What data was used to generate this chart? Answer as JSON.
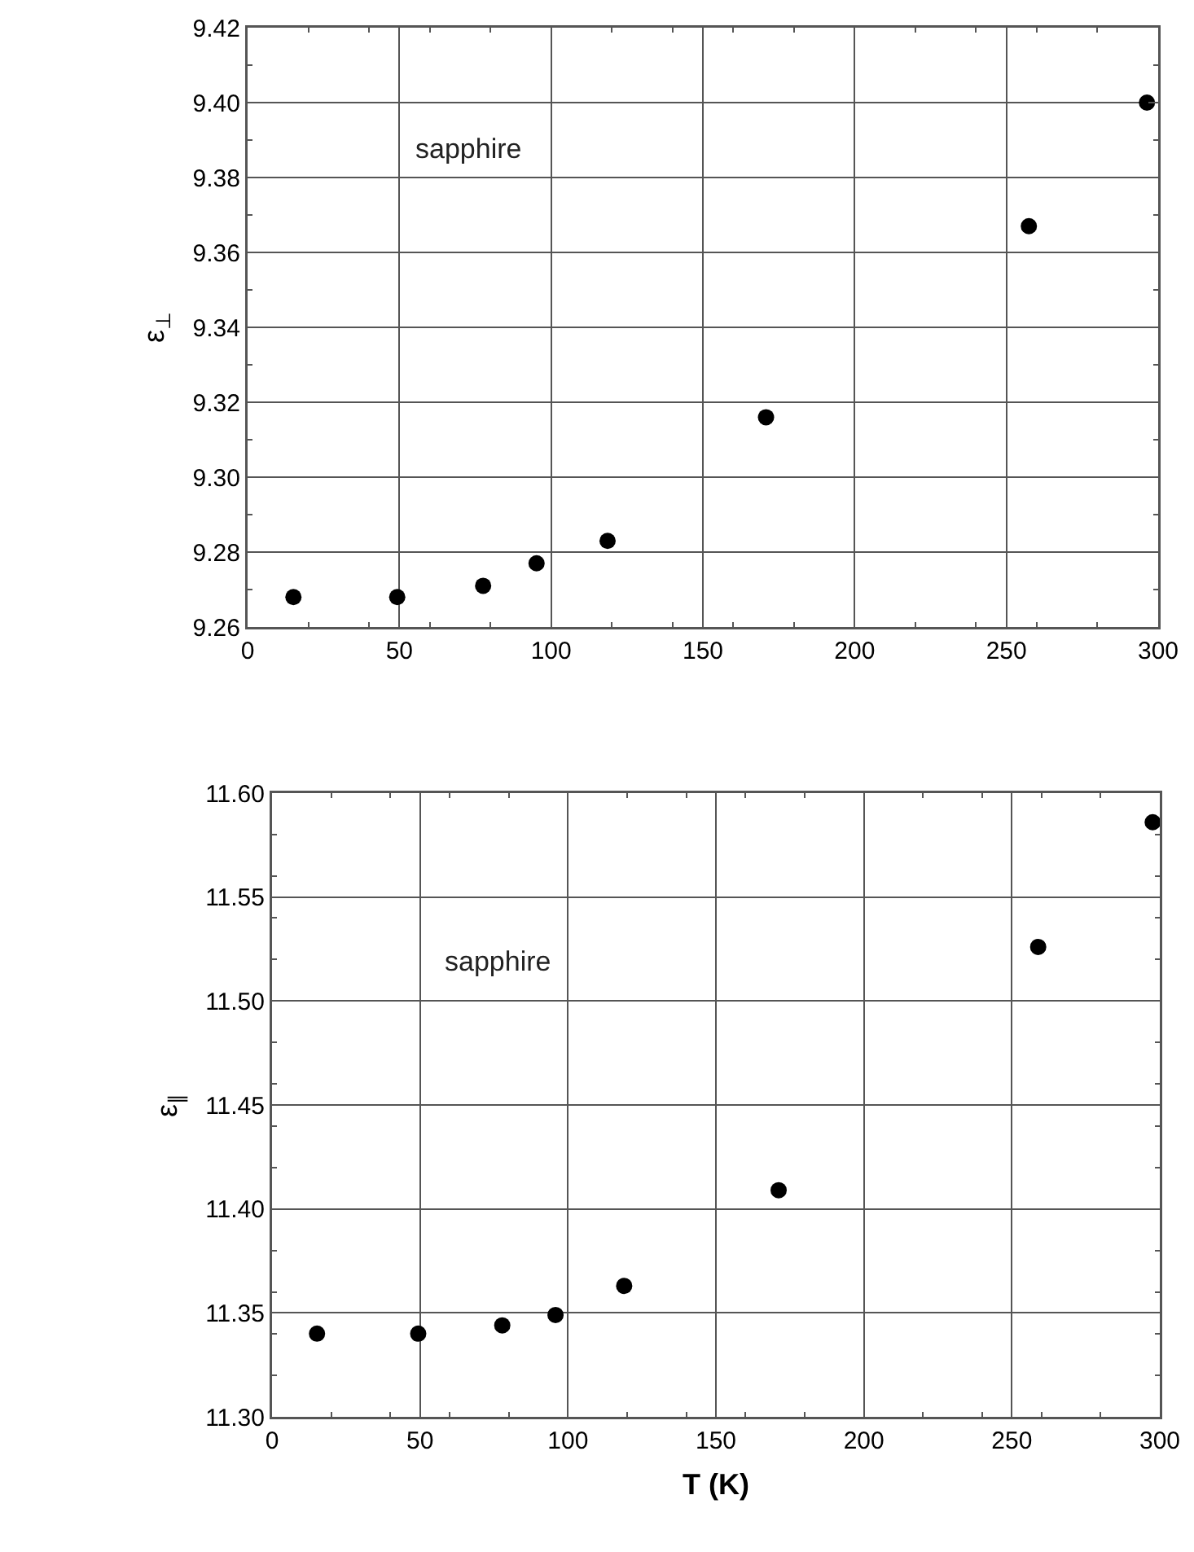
{
  "chart_data": [
    {
      "type": "scatter",
      "ylabel": "ε$_{⊥}$",
      "annotations": [
        "sapphire"
      ],
      "x": [
        15.1,
        49.3,
        77.6,
        95.2,
        118.6,
        170.8,
        257.4,
        296.3
      ],
      "values": [
        9.268,
        9.268,
        9.271,
        9.277,
        9.283,
        9.316,
        9.367,
        9.4
      ],
      "color": "#000000",
      "marker": "circle",
      "grid": true,
      "xlim": [
        0,
        300
      ],
      "xticks": [
        0,
        50,
        100,
        150,
        200,
        250,
        300
      ],
      "ylim": [
        9.26,
        9.42
      ],
      "yticks": [
        {
          "value": 9.26,
          "label": "9.26"
        },
        {
          "value": 9.28,
          "label": "9.28"
        },
        {
          "value": 9.3,
          "label": "9.30"
        },
        {
          "value": 9.32,
          "label": "9.32"
        },
        {
          "value": 9.34,
          "label": "9.34"
        },
        {
          "value": 9.36,
          "label": "9.36"
        },
        {
          "value": 9.38,
          "label": "9.38"
        },
        {
          "value": 9.4,
          "label": "9.40"
        },
        {
          "value": 9.42,
          "label": "9.42"
        }
      ]
    },
    {
      "type": "scatter",
      "ylabel": "ε$_{∥}$",
      "xlabel": "T (K)",
      "annotations": [
        "sapphire"
      ],
      "x": [
        15.2,
        49.4,
        77.8,
        95.8,
        119.0,
        171.2,
        258.9,
        297.6
      ],
      "values": [
        11.34,
        11.34,
        11.344,
        11.349,
        11.363,
        11.409,
        11.526,
        11.586
      ],
      "color": "#000000",
      "marker": "circle",
      "grid": true,
      "xlim": [
        0,
        300
      ],
      "xticks": [
        0,
        50,
        100,
        150,
        200,
        250,
        300
      ],
      "ylim": [
        11.3,
        11.6
      ],
      "yticks": [
        {
          "value": 11.3,
          "label": "11.30"
        },
        {
          "value": 11.35,
          "label": "11.35"
        },
        {
          "value": 11.4,
          "label": "11.40"
        },
        {
          "value": 11.45,
          "label": "11.45"
        },
        {
          "value": 11.5,
          "label": "11.50"
        },
        {
          "value": 11.55,
          "label": "11.55"
        },
        {
          "value": 11.6,
          "label": "11.60"
        }
      ]
    }
  ]
}
